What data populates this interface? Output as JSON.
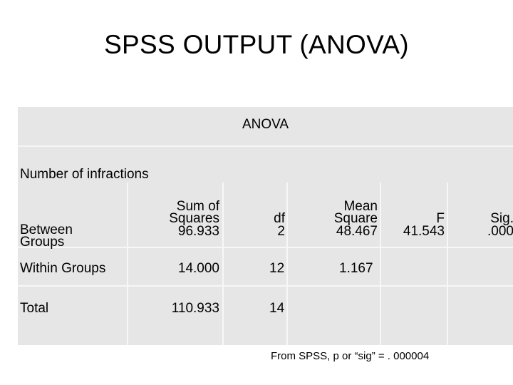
{
  "slide": {
    "title": "SPSS OUTPUT (ANOVA)"
  },
  "anova": {
    "caption": "ANOVA",
    "dependent": "Number of infractions",
    "headers": {
      "sum_of_squares_1": "Sum of",
      "sum_of_squares_2": "Squares",
      "df": "df",
      "mean_square_1": "Mean",
      "mean_square_2": "Square",
      "f": "F",
      "sig": "Sig."
    },
    "rows": [
      {
        "label_1": "Between",
        "label_2": "Groups",
        "ss": "96.933",
        "df": "2",
        "ms": "48.467",
        "f": "41.543",
        "sig": ".000"
      },
      {
        "label": "Within Groups",
        "ss": "14.000",
        "df": "12",
        "ms": "1.167"
      },
      {
        "label": "Total",
        "ss": "110.933",
        "df": "14"
      }
    ]
  },
  "footnote": "From SPSS, p or “sig” = . 000004"
}
